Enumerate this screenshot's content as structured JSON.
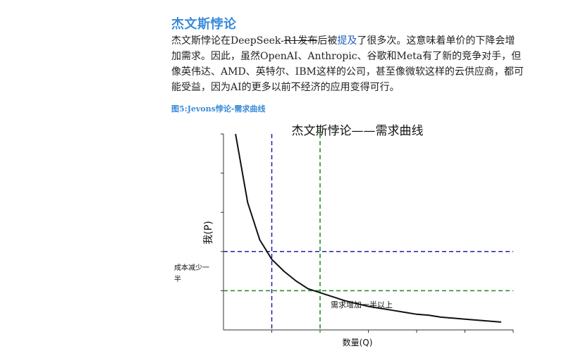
{
  "section": {
    "heading": "杰文斯悖论",
    "paragraph": {
      "part1": "杰文斯悖论在DeepSeek-",
      "strike": "R1发布",
      "part2": "后被",
      "link": "提及",
      "part3": "了很多次。这意味着单价的下降会增加需求。因此，虽然OpenAI、Anthropic、谷歌和Meta有了新的竞争对手，但像英伟达、AMD、英特尔、IBM这样的公司，甚至像微软这样的云供应商，都可能受益，因为AI的更多以前不经济的应用变得可行。"
    },
    "figure_caption": "图5:Jevons悖论-需求曲线"
  },
  "chart_data": {
    "type": "line",
    "title": "杰文斯悖论——需求曲线",
    "xlabel": "数量(Q)",
    "ylabel": "我(P)",
    "grid": false,
    "series": [
      {
        "values": [
          [
            0.5,
            10.0
          ],
          [
            1.0,
            6.5
          ],
          [
            1.5,
            4.6
          ],
          [
            2.0,
            3.6
          ],
          [
            2.5,
            3.0
          ],
          [
            3.0,
            2.5
          ],
          [
            3.5,
            2.1
          ],
          [
            4.0,
            1.9
          ],
          [
            4.5,
            1.7
          ],
          [
            5.0,
            1.5
          ],
          [
            5.5,
            1.35
          ],
          [
            6.0,
            1.2
          ],
          [
            6.5,
            1.1
          ],
          [
            7.0,
            1.0
          ],
          [
            7.5,
            0.9
          ],
          [
            8.0,
            0.8
          ],
          [
            8.5,
            0.75
          ],
          [
            9.0,
            0.65
          ],
          [
            9.5,
            0.6
          ],
          [
            10.0,
            0.55
          ],
          [
            10.5,
            0.5
          ],
          [
            11.0,
            0.45
          ],
          [
            11.5,
            0.4
          ]
        ]
      }
    ],
    "guides": [
      {
        "q": 2.0,
        "p": 4.0,
        "color": "#1f1fa8"
      },
      {
        "q": 4.0,
        "p": 2.0,
        "color": "#1a8a1a"
      }
    ],
    "annotations": {
      "price_note": "成本减少一半",
      "demand_note": "需求增加一半以上"
    },
    "xlim": [
      0,
      12
    ],
    "ylim": [
      0,
      10
    ]
  }
}
